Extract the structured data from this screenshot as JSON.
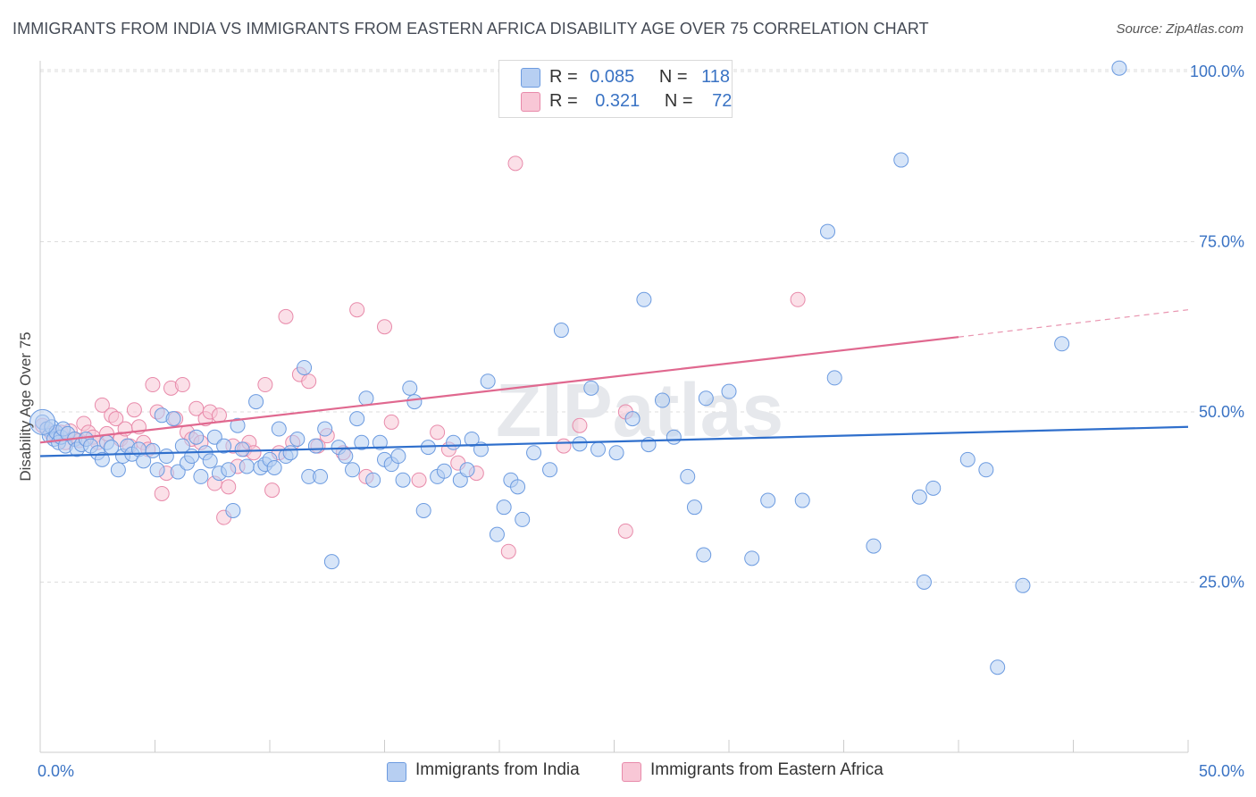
{
  "title": "IMMIGRANTS FROM INDIA VS IMMIGRANTS FROM EASTERN AFRICA DISABILITY AGE OVER 75 CORRELATION CHART",
  "source": "Source: ZipAtlas.com",
  "watermark": "ZIPatlas",
  "colors": {
    "india_fill": "#b7cff2",
    "india_stroke": "#6c9be0",
    "india_line": "#2f6fcc",
    "ea_fill": "#f8c7d6",
    "ea_stroke": "#e88aaa",
    "ea_line": "#e0688f",
    "tick_label": "#3a73c4",
    "grid": "#dddddd"
  },
  "legend": {
    "row1": {
      "r_label": "R =",
      "r_value": "0.085",
      "n_label": "N =",
      "n_value": "118"
    },
    "row2": {
      "r_label": "R =",
      "r_value": "0.321",
      "n_label": "N =",
      "n_value": "72"
    }
  },
  "chart_data": {
    "type": "scatter",
    "title": "IMMIGRANTS FROM INDIA VS IMMIGRANTS FROM EASTERN AFRICA DISABILITY AGE OVER 75 CORRELATION CHART",
    "xlabel": "",
    "ylabel": "Disability Age Over 75",
    "xlim": [
      0,
      50
    ],
    "ylim": [
      0,
      105
    ],
    "x_tick_labels": [
      "0.0%",
      "50.0%"
    ],
    "y_tick_labels": [
      "25.0%",
      "50.0%",
      "75.0%",
      "100.0%"
    ],
    "y_ticks": [
      25,
      50,
      75,
      100
    ],
    "grid": "horizontal dashed",
    "legend_placement": "top-center",
    "series": [
      {
        "name": "Immigrants from India",
        "r": 0.085,
        "n": 118,
        "trend": {
          "x0": 0,
          "y0": 43.5,
          "x1": 50,
          "y1": 47.8
        },
        "points": [
          [
            0.1,
            48.5
          ],
          [
            0.3,
            47.5
          ],
          [
            0.4,
            46.5
          ],
          [
            0.5,
            47.8
          ],
          [
            0.6,
            46.0
          ],
          [
            0.7,
            47.0
          ],
          [
            0.8,
            45.5
          ],
          [
            0.9,
            46.3
          ],
          [
            1.0,
            47.5
          ],
          [
            1.1,
            45.0
          ],
          [
            1.2,
            46.8
          ],
          [
            1.5,
            46.0
          ],
          [
            1.6,
            44.5
          ],
          [
            1.8,
            45.2
          ],
          [
            2.0,
            46.0
          ],
          [
            2.2,
            45.0
          ],
          [
            2.5,
            44.0
          ],
          [
            2.7,
            43.0
          ],
          [
            2.9,
            45.5
          ],
          [
            3.1,
            44.8
          ],
          [
            3.4,
            41.5
          ],
          [
            3.6,
            43.5
          ],
          [
            3.8,
            45.0
          ],
          [
            4.0,
            43.8
          ],
          [
            4.3,
            44.5
          ],
          [
            4.5,
            42.8
          ],
          [
            4.9,
            44.3
          ],
          [
            5.1,
            41.5
          ],
          [
            5.3,
            49.5
          ],
          [
            5.5,
            43.5
          ],
          [
            5.8,
            49.0
          ],
          [
            6.0,
            41.2
          ],
          [
            6.2,
            45.0
          ],
          [
            6.4,
            42.5
          ],
          [
            6.6,
            43.5
          ],
          [
            6.8,
            46.3
          ],
          [
            7.0,
            40.5
          ],
          [
            7.2,
            44.0
          ],
          [
            7.4,
            42.8
          ],
          [
            7.6,
            46.3
          ],
          [
            7.8,
            41.0
          ],
          [
            8.0,
            45.0
          ],
          [
            8.2,
            41.5
          ],
          [
            8.4,
            35.5
          ],
          [
            8.6,
            48.0
          ],
          [
            8.8,
            44.5
          ],
          [
            9.0,
            42.0
          ],
          [
            9.4,
            51.5
          ],
          [
            9.6,
            41.8
          ],
          [
            9.8,
            42.3
          ],
          [
            10.0,
            43.0
          ],
          [
            10.2,
            41.8
          ],
          [
            10.4,
            47.5
          ],
          [
            10.7,
            43.5
          ],
          [
            10.9,
            44.0
          ],
          [
            11.2,
            46.0
          ],
          [
            11.5,
            56.5
          ],
          [
            11.7,
            40.5
          ],
          [
            12.0,
            45.0
          ],
          [
            12.2,
            40.5
          ],
          [
            12.4,
            47.5
          ],
          [
            12.7,
            28.0
          ],
          [
            13.0,
            44.8
          ],
          [
            13.3,
            43.5
          ],
          [
            13.6,
            41.5
          ],
          [
            13.8,
            49.0
          ],
          [
            14.0,
            45.5
          ],
          [
            14.2,
            52.0
          ],
          [
            14.5,
            40.0
          ],
          [
            14.8,
            45.5
          ],
          [
            15.0,
            43.0
          ],
          [
            15.3,
            42.3
          ],
          [
            15.6,
            43.5
          ],
          [
            15.8,
            40.0
          ],
          [
            16.1,
            53.5
          ],
          [
            16.3,
            51.5
          ],
          [
            16.7,
            35.5
          ],
          [
            16.9,
            44.8
          ],
          [
            17.3,
            40.5
          ],
          [
            17.6,
            41.3
          ],
          [
            18.0,
            45.5
          ],
          [
            18.3,
            40.0
          ],
          [
            18.6,
            41.5
          ],
          [
            18.8,
            46.0
          ],
          [
            19.2,
            44.5
          ],
          [
            19.5,
            54.5
          ],
          [
            19.9,
            32.0
          ],
          [
            20.2,
            36.0
          ],
          [
            20.5,
            40.0
          ],
          [
            20.8,
            39.0
          ],
          [
            21.0,
            34.2
          ],
          [
            21.5,
            44.0
          ],
          [
            22.2,
            41.5
          ],
          [
            22.7,
            62.0
          ],
          [
            23.5,
            45.3
          ],
          [
            24.0,
            53.5
          ],
          [
            24.3,
            44.5
          ],
          [
            25.1,
            44.0
          ],
          [
            25.8,
            49.0
          ],
          [
            26.3,
            66.5
          ],
          [
            26.5,
            45.2
          ],
          [
            27.1,
            51.7
          ],
          [
            27.6,
            46.3
          ],
          [
            28.2,
            40.5
          ],
          [
            28.5,
            36.0
          ],
          [
            28.9,
            29.0
          ],
          [
            29.0,
            52.0
          ],
          [
            30.0,
            53.0
          ],
          [
            31.0,
            28.5
          ],
          [
            31.7,
            37.0
          ],
          [
            33.2,
            37.0
          ],
          [
            34.3,
            76.5
          ],
          [
            34.6,
            55.0
          ],
          [
            36.3,
            30.3
          ],
          [
            37.5,
            87.0
          ],
          [
            38.3,
            37.5
          ],
          [
            38.9,
            38.8
          ],
          [
            38.5,
            25.0
          ],
          [
            40.4,
            43.0
          ],
          [
            41.2,
            41.5
          ],
          [
            41.7,
            12.5
          ],
          [
            42.8,
            24.5
          ],
          [
            44.5,
            60.0
          ],
          [
            47.0,
            100.5
          ]
        ]
      },
      {
        "name": "Immigrants from Eastern Africa",
        "r": 0.321,
        "n": 72,
        "trend": {
          "x0": 0,
          "y0": 45.5,
          "x1": 40,
          "y1": 61.0
        },
        "trend_dashed": {
          "x0": 40,
          "y0": 61.0,
          "x1": 50,
          "y1": 65.0
        },
        "points": [
          [
            0.1,
            48.0
          ],
          [
            0.3,
            47.5
          ],
          [
            0.5,
            46.8
          ],
          [
            0.7,
            46.5
          ],
          [
            0.9,
            47.0
          ],
          [
            1.1,
            45.5
          ],
          [
            1.3,
            47.2
          ],
          [
            1.5,
            46.0
          ],
          [
            1.7,
            45.8
          ],
          [
            1.9,
            48.3
          ],
          [
            2.1,
            47.0
          ],
          [
            2.3,
            46.3
          ],
          [
            2.5,
            45.5
          ],
          [
            2.7,
            51.0
          ],
          [
            2.9,
            46.8
          ],
          [
            3.1,
            49.5
          ],
          [
            3.3,
            49.0
          ],
          [
            3.5,
            46.0
          ],
          [
            3.7,
            47.5
          ],
          [
            3.9,
            45.0
          ],
          [
            4.1,
            50.3
          ],
          [
            4.3,
            47.8
          ],
          [
            4.5,
            45.5
          ],
          [
            4.7,
            44.5
          ],
          [
            4.9,
            54.0
          ],
          [
            5.1,
            50.0
          ],
          [
            5.3,
            38.0
          ],
          [
            5.5,
            41.0
          ],
          [
            5.7,
            53.5
          ],
          [
            5.9,
            49.0
          ],
          [
            6.2,
            54.0
          ],
          [
            6.4,
            47.0
          ],
          [
            6.6,
            46.0
          ],
          [
            6.8,
            50.5
          ],
          [
            7.0,
            45.5
          ],
          [
            7.2,
            49.0
          ],
          [
            7.4,
            50.0
          ],
          [
            7.6,
            39.5
          ],
          [
            7.8,
            49.5
          ],
          [
            8.0,
            34.5
          ],
          [
            8.2,
            39.0
          ],
          [
            8.4,
            45.0
          ],
          [
            8.6,
            42.0
          ],
          [
            8.9,
            44.5
          ],
          [
            9.1,
            45.5
          ],
          [
            9.3,
            44.0
          ],
          [
            9.8,
            54.0
          ],
          [
            10.1,
            38.5
          ],
          [
            10.4,
            44.0
          ],
          [
            10.7,
            64.0
          ],
          [
            11.0,
            45.5
          ],
          [
            11.3,
            55.5
          ],
          [
            11.7,
            54.5
          ],
          [
            12.1,
            45.0
          ],
          [
            12.5,
            46.5
          ],
          [
            13.2,
            44.0
          ],
          [
            13.8,
            65.0
          ],
          [
            14.2,
            40.5
          ],
          [
            15.0,
            62.5
          ],
          [
            15.3,
            48.5
          ],
          [
            16.5,
            40.0
          ],
          [
            17.3,
            47.0
          ],
          [
            17.8,
            44.5
          ],
          [
            18.2,
            42.5
          ],
          [
            19.0,
            41.0
          ],
          [
            20.4,
            29.5
          ],
          [
            20.7,
            86.5
          ],
          [
            22.8,
            45.0
          ],
          [
            23.5,
            48.0
          ],
          [
            25.5,
            50.0
          ],
          [
            25.5,
            32.5
          ],
          [
            33.0,
            66.5
          ]
        ]
      }
    ]
  },
  "bottom_legend": {
    "india": "Immigrants from India",
    "ea": "Immigrants from Eastern Africa"
  }
}
